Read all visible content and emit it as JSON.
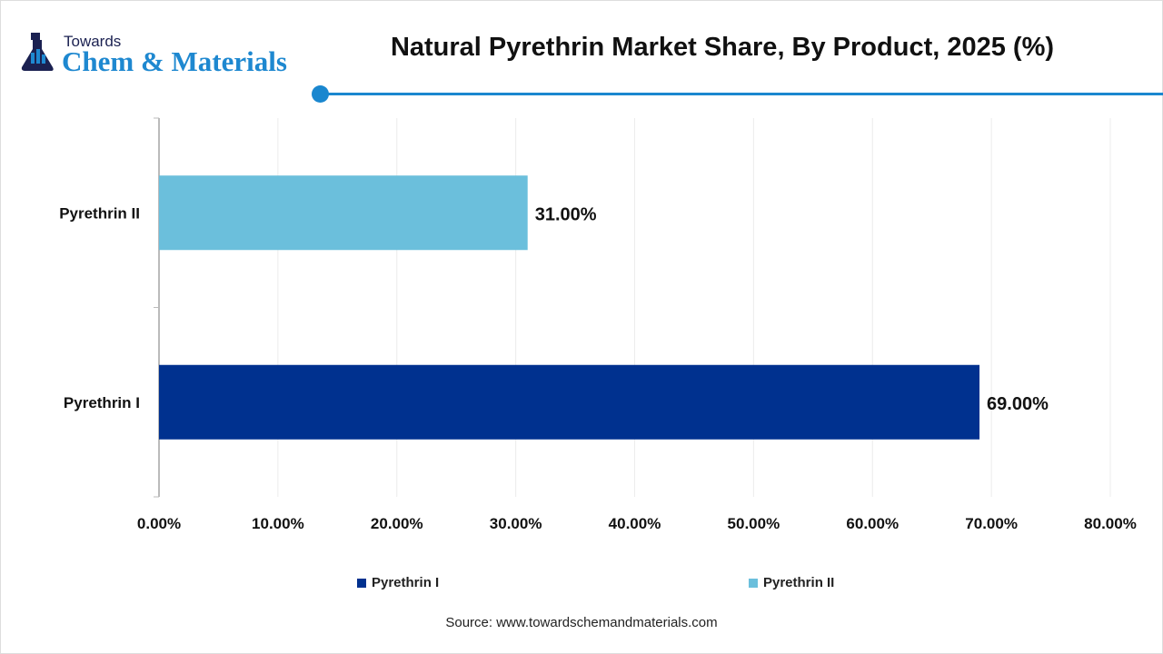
{
  "logo": {
    "line1": "Towards",
    "line2": "Chem & Materials"
  },
  "chart_data": {
    "type": "bar",
    "orientation": "horizontal",
    "title": "Natural Pyrethrin Market Share, By Product, 2025 (%)",
    "categories": [
      "Pyrethrin II",
      "Pyrethrin I"
    ],
    "values": [
      31.0,
      69.0
    ],
    "data_labels": [
      "31.00%",
      "69.00%"
    ],
    "colors": [
      "#6bbfdc",
      "#00318f"
    ],
    "xlim": [
      0,
      80
    ],
    "xticks": [
      "0.00%",
      "10.00%",
      "20.00%",
      "30.00%",
      "40.00%",
      "50.00%",
      "60.00%",
      "70.00%",
      "80.00%"
    ],
    "grid": true,
    "legend": [
      {
        "name": "Pyrethrin I",
        "color": "#00318f"
      },
      {
        "name": "Pyrethrin II",
        "color": "#6bbfdc"
      }
    ],
    "legend_placement": "bottom"
  },
  "source": "Source: www.towardschemandmaterials.com"
}
